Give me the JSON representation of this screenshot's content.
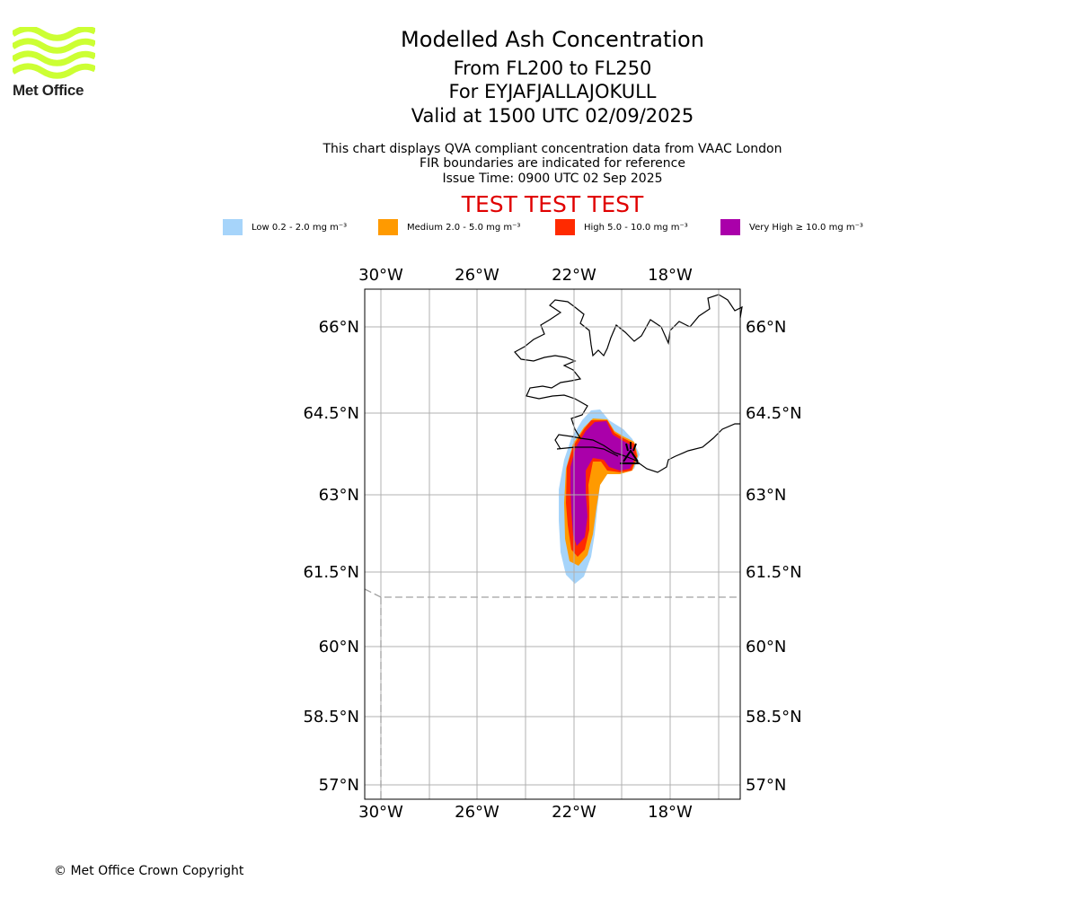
{
  "branding": {
    "logo_text": "Met Office",
    "logo_color": "#ccff33"
  },
  "header": {
    "title": "Modelled Ash Concentration",
    "levels": "From FL200 to FL250",
    "volcano": "For EYJAFJALLAJOKULL",
    "valid": "Valid at 1500 UTC 02/09/2025",
    "note1": "This chart displays QVA compliant concentration data from VAAC London",
    "note2": "FIR boundaries are indicated for reference",
    "issue": "Issue Time: 0900 UTC 02 Sep 2025",
    "test_banner": "TEST TEST TEST",
    "test_color": "#e00000"
  },
  "legend": [
    {
      "label": "Low 0.2 - 2.0 mg m⁻³",
      "color": "#a6d4fa"
    },
    {
      "label": "Medium 2.0 - 5.0 mg m⁻³",
      "color": "#ff9a00"
    },
    {
      "label": "High 5.0 - 10.0 mg m⁻³",
      "color": "#ff2a00"
    },
    {
      "label": "Very High ≥ 10.0 mg m⁻³",
      "color": "#aa00aa"
    }
  ],
  "map": {
    "lon_labels": [
      "30°W",
      "26°W",
      "22°W",
      "18°W"
    ],
    "lat_labels": [
      "66°N",
      "64.5°N",
      "63°N",
      "61.5°N",
      "60°N",
      "58.5°N",
      "57°N"
    ]
  },
  "footer": {
    "copyright": "© Met Office Crown Copyright"
  }
}
